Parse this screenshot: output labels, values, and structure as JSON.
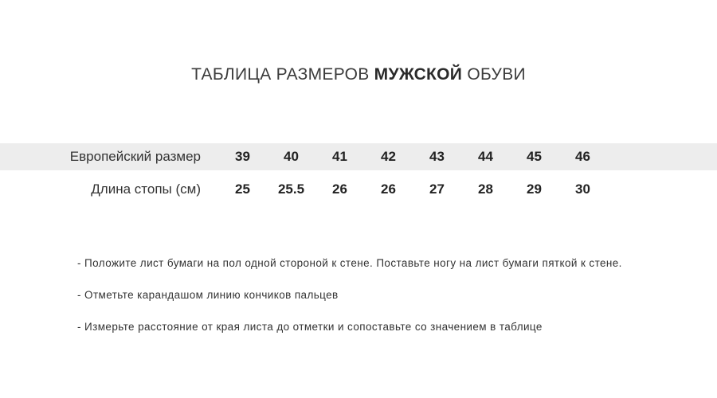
{
  "title": {
    "prefix": "ТАБЛИЦА РАЗМЕРОВ",
    "highlight": "МУЖСКОЙ",
    "suffix": "ОБУВИ"
  },
  "chart_data": {
    "type": "table",
    "title": "ТАБЛИЦА РАЗМЕРОВ МУЖСКОЙ ОБУВИ",
    "rows": [
      {
        "label": "Европейский размер",
        "values": [
          39,
          40,
          41,
          42,
          43,
          44,
          45,
          46
        ]
      },
      {
        "label": "Длина стопы (см)",
        "values": [
          25,
          25.5,
          26,
          26,
          27,
          28,
          29,
          30
        ]
      }
    ],
    "layout_hints": {
      "highlight_row_index": 0,
      "label_alignment": "right",
      "values_alignment": "center"
    }
  },
  "instructions": [
    "- Положите лист бумаги на пол одной стороной к стене. Поставьте ногу на лист бумаги пяткой к стене.",
    "- Отметьте карандашом линию кончиков пальцев",
    "- Измерьте расстояние от края листа до отметки и сопоставьте со значением в таблице"
  ],
  "colors": {
    "highlight_row_bg": "#ededed",
    "title_text": "#3b3b3b",
    "body_text": "#333333",
    "number_text": "#222222",
    "page_bg": "#ffffff"
  }
}
